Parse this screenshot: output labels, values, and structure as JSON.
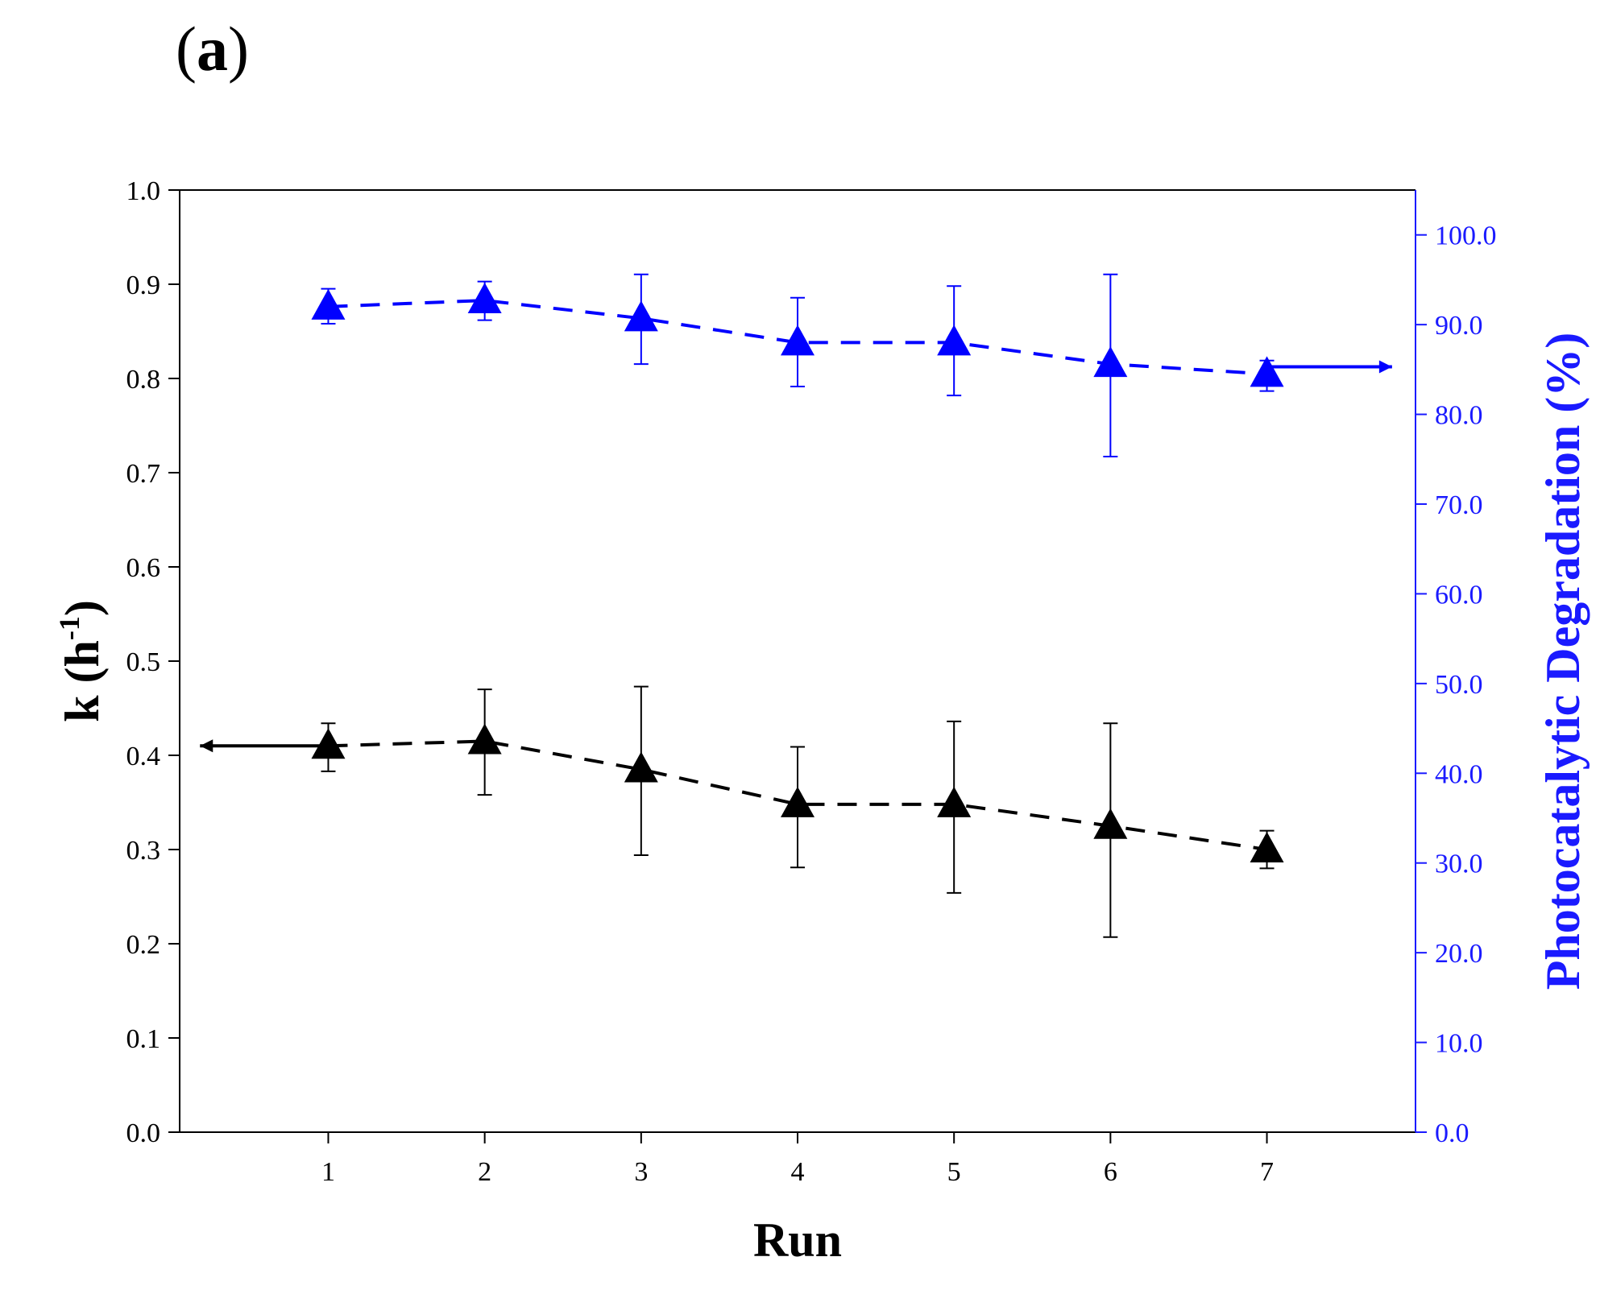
{
  "panel": {
    "open": "(",
    "letter": "a",
    "close": ")"
  },
  "colors": {
    "left_series": "#000000",
    "right_series": "#0000ff",
    "right_axis": "#1a1aff"
  },
  "chart_data": {
    "type": "line",
    "title": "",
    "xlabel": "Run",
    "ylabel": "k (h",
    "ylabel_sup": "-1",
    "ylabel_close": ")",
    "y2label": "Photocatalytic Degradation (%)",
    "x": [
      1,
      2,
      3,
      4,
      5,
      6,
      7
    ],
    "xlim": [
      0.05,
      7.95
    ],
    "ylim": [
      0.0,
      1.0
    ],
    "y2lim": [
      0.0,
      105.0
    ],
    "x_ticks": [
      "1",
      "2",
      "3",
      "4",
      "5",
      "6",
      "7"
    ],
    "y_ticks": [
      "0.0",
      "0.1",
      "0.2",
      "0.3",
      "0.4",
      "0.5",
      "0.6",
      "0.7",
      "0.8",
      "0.9",
      "1.0"
    ],
    "y2_ticks": [
      "0.0",
      "10.0",
      "20.0",
      "30.0",
      "40.0",
      "50.0",
      "60.0",
      "70.0",
      "80.0",
      "90.0",
      "100.0"
    ],
    "series": [
      {
        "name": "k",
        "axis": "left",
        "marker": "triangle",
        "line": "dashed",
        "values": [
          0.41,
          0.415,
          0.385,
          0.348,
          0.348,
          0.325,
          0.3
        ],
        "error_low": [
          0.383,
          0.358,
          0.294,
          0.281,
          0.254,
          0.207,
          0.28
        ],
        "error_high": [
          0.434,
          0.47,
          0.473,
          0.409,
          0.436,
          0.434,
          0.32
        ],
        "axis_arrow": {
          "from_x": 1,
          "to_x": 0.18,
          "value": 0.41
        }
      },
      {
        "name": "Photocatalytic Degradation",
        "axis": "right",
        "marker": "triangle",
        "line": "dashed",
        "values": [
          92.0,
          92.7,
          90.7,
          88.0,
          88.0,
          85.6,
          84.5
        ],
        "error_low": [
          90.1,
          90.5,
          85.6,
          83.1,
          82.1,
          75.3,
          82.6
        ],
        "error_high": [
          94.0,
          94.8,
          95.6,
          93.0,
          94.3,
          95.6,
          86.0
        ],
        "axis_arrow": {
          "from_x": 7,
          "to_x": 7.8,
          "value": 85.3
        }
      }
    ]
  }
}
